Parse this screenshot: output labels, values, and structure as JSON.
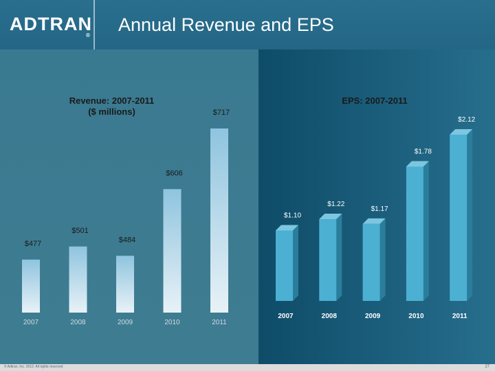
{
  "header": {
    "logo_text": "ADTRAN",
    "title": "Annual Revenue and EPS"
  },
  "footer": {
    "copyright": "© Adtran, Inc. 2012. All rights reserved",
    "page_number": "27"
  },
  "colors": {
    "revenue_bar_top": "#8fc4df",
    "revenue_bar_bottom": "#e8f2f7",
    "eps_bar_front": "#4cb0d3",
    "eps_bar_side": "#2a7d9b",
    "eps_bar_top": "#7cc6e0"
  },
  "chart_data": [
    {
      "type": "bar",
      "title_line1": "Revenue: 2007-2011",
      "title_line2": "($ millions)",
      "categories": [
        "2007",
        "2008",
        "2009",
        "2010",
        "2011"
      ],
      "values": [
        477,
        501,
        484,
        606,
        717
      ],
      "value_labels": [
        "$477",
        "$501",
        "$484",
        "$606",
        "$717"
      ],
      "ylim": [
        0,
        717
      ]
    },
    {
      "type": "bar",
      "title": "EPS: 2007-2011",
      "categories": [
        "2007",
        "2008",
        "2009",
        "2010",
        "2011"
      ],
      "values": [
        1.1,
        1.22,
        1.17,
        1.78,
        2.12
      ],
      "value_labels": [
        "$1.10",
        "$1.22",
        "$1.17",
        "$1.78",
        "$2.12"
      ],
      "ylim": [
        0,
        2.12
      ]
    }
  ]
}
